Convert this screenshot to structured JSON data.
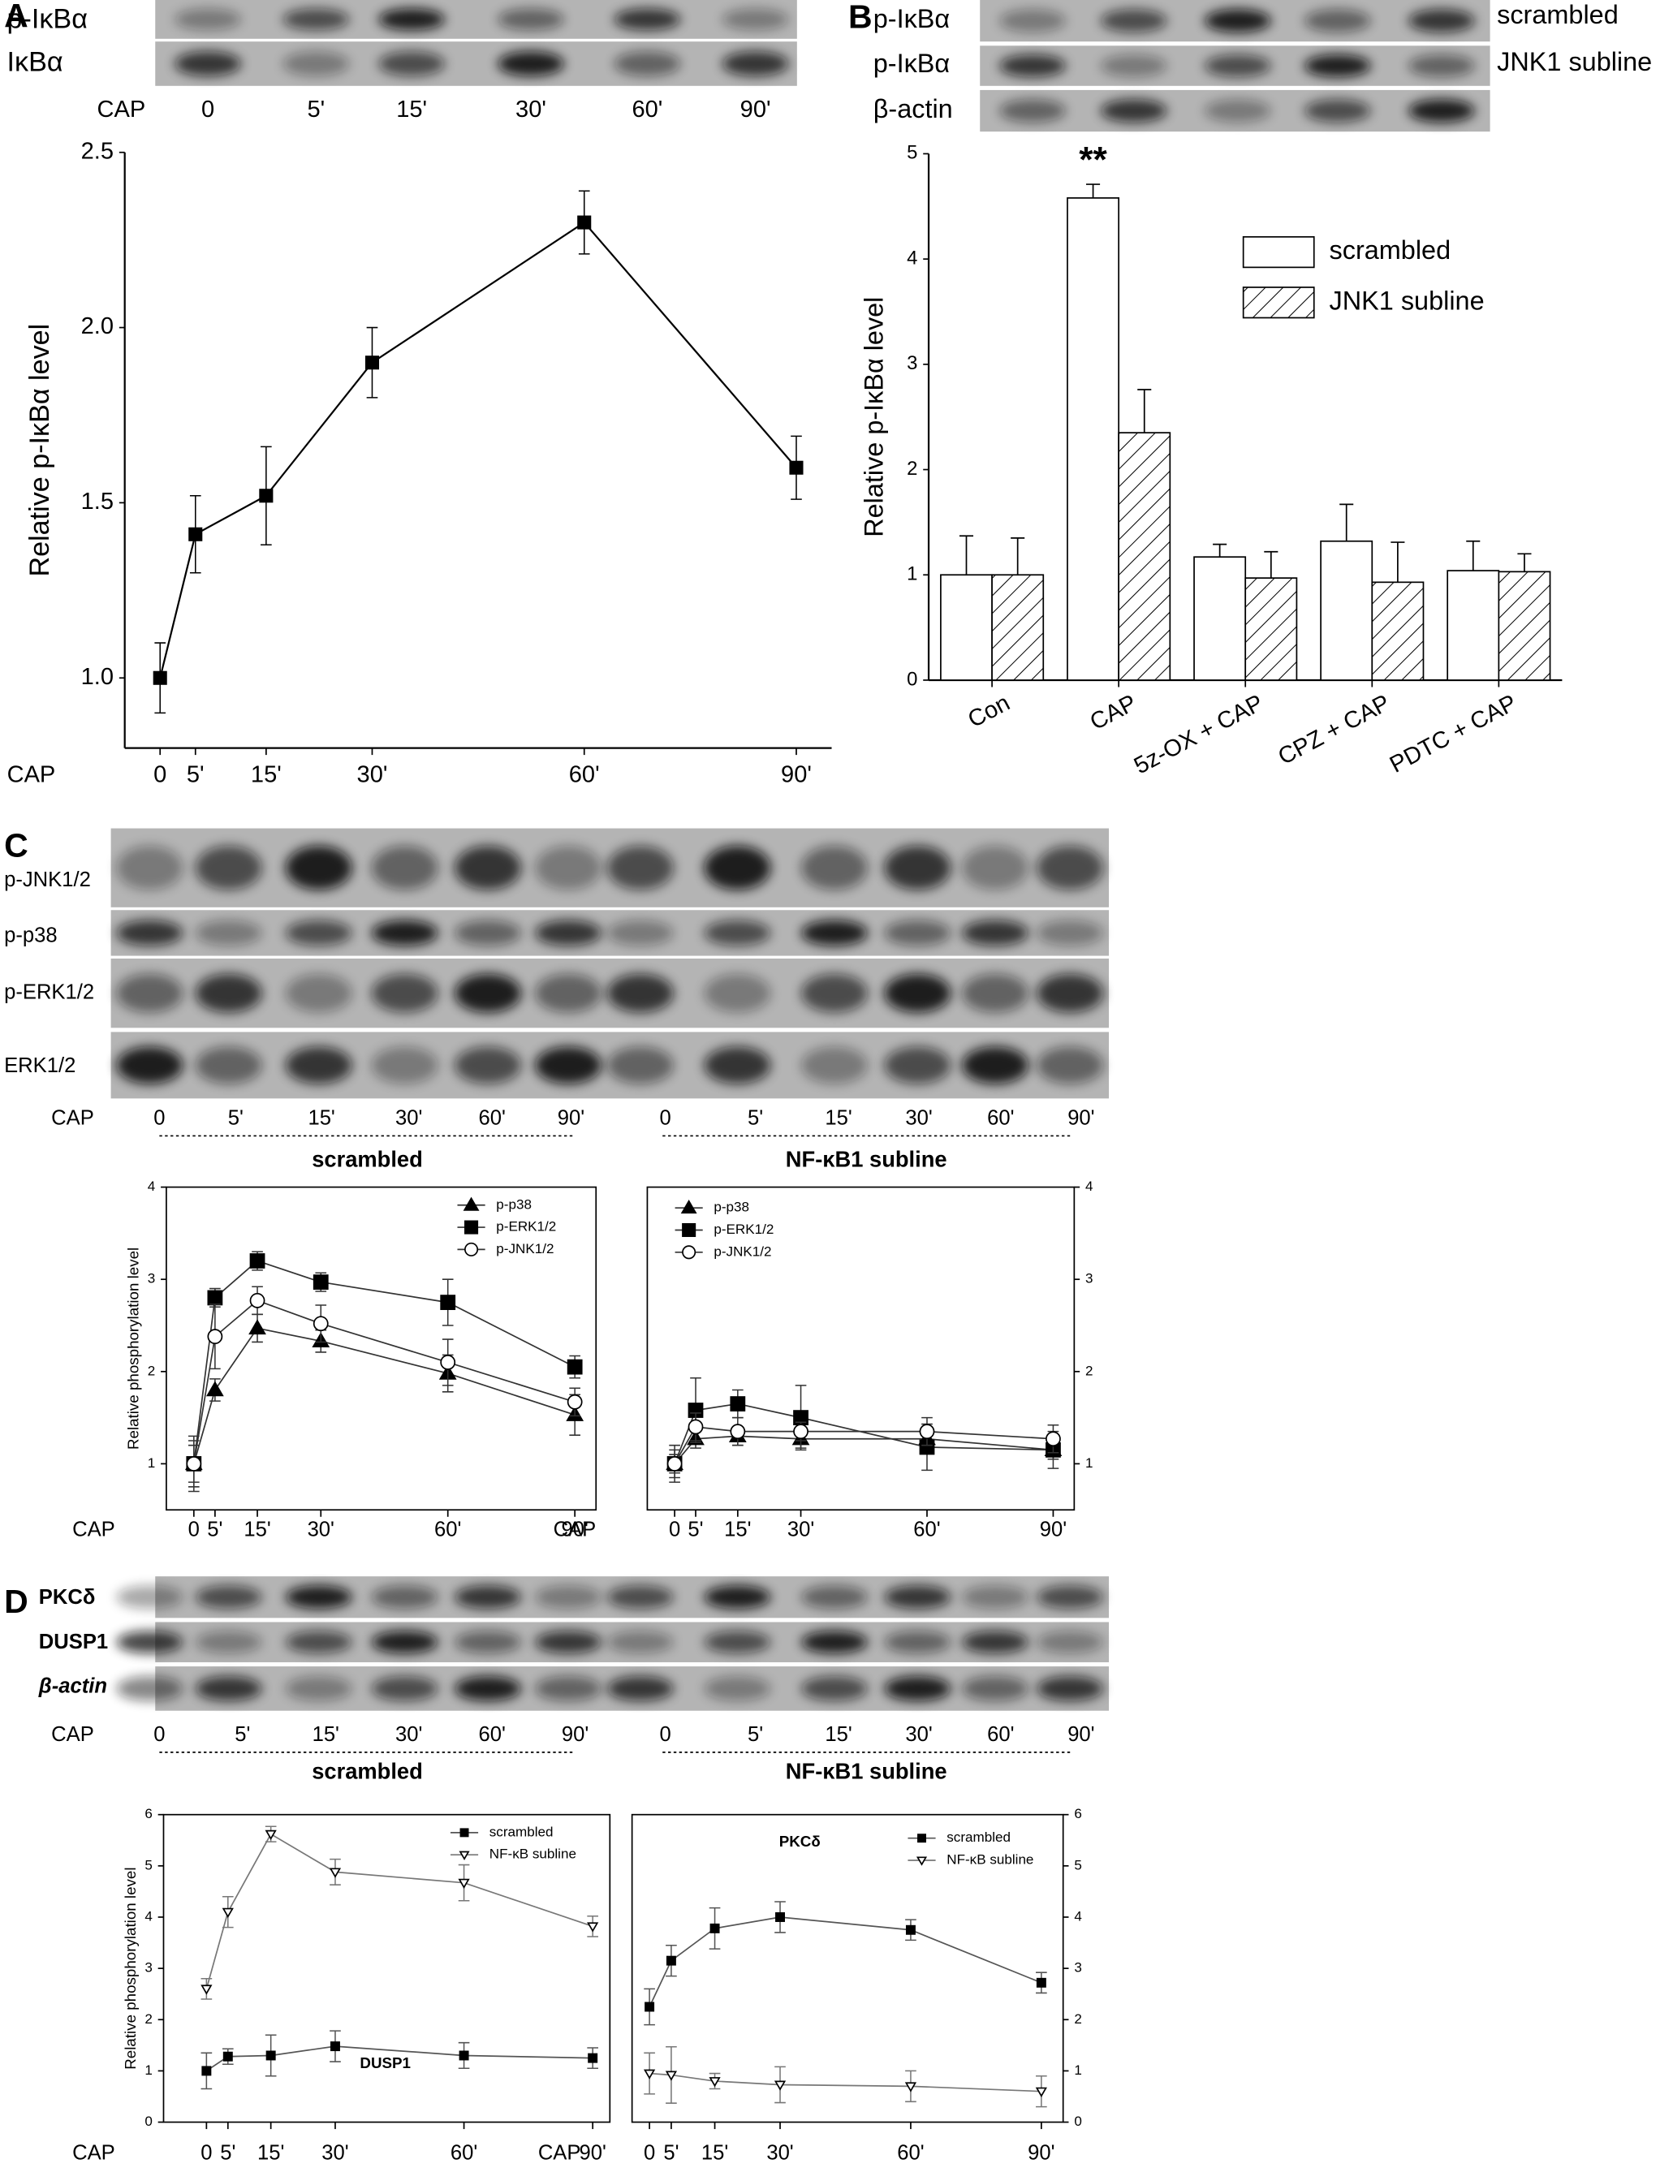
{
  "panel_labels": [
    "A",
    "B",
    "C",
    "D"
  ],
  "blots": [
    {
      "rows": [
        "p-IκBα",
        "IκBα"
      ],
      "x_label": "CAP",
      "groups": [
        {
          "lanes": [
            "0",
            "5'",
            "15'",
            "30'",
            "60'",
            "90'"
          ]
        }
      ]
    },
    {
      "rows": [
        "p-IκBα",
        "p-IκBα",
        "β-actin"
      ],
      "right_labels": [
        "scrambled",
        "JNK1 subline"
      ]
    },
    {
      "rows": [
        "p-JNK1/2",
        "p-p38",
        "p-ERK1/2",
        "ERK1/2"
      ],
      "x_label": "CAP",
      "groups": [
        {
          "name": "scrambled",
          "lanes": [
            "0",
            "5'",
            "15'",
            "30'",
            "60'",
            "90'"
          ]
        },
        {
          "name": "NF-κB1 subline",
          "lanes": [
            "0",
            "5'",
            "15'",
            "30'",
            "60'",
            "90'"
          ]
        }
      ]
    },
    {
      "rows": [
        "PKCδ",
        "DUSP1",
        "β-actin"
      ],
      "x_label": "CAP",
      "groups": [
        {
          "name": "scrambled",
          "lanes": [
            "0",
            "5'",
            "15'",
            "30'",
            "60'",
            "90'"
          ]
        },
        {
          "name": "NF-κB1 subline",
          "lanes": [
            "0",
            "5'",
            "15'",
            "30'",
            "60'",
            "90'"
          ]
        }
      ]
    }
  ],
  "chart_data": [
    {
      "type": "line",
      "y_label": "Relative p-IκBα level",
      "x_label": "CAP",
      "frame": false,
      "y_axis": "left",
      "x": [
        0,
        5,
        15,
        30,
        60,
        90
      ],
      "xlim": [
        -5,
        95
      ],
      "xticks": [
        0,
        {
          "value": 5,
          "label": "5'"
        },
        {
          "value": 15,
          "label": "15'"
        },
        {
          "value": 30,
          "label": "30'"
        },
        {
          "value": 60,
          "label": "60'"
        },
        {
          "value": 90,
          "label": "90'"
        }
      ],
      "ylim": [
        0.8,
        2.5
      ],
      "yticks": [
        {
          "value": 1,
          "label": "1.0"
        },
        1.5,
        {
          "value": 2,
          "label": "2.0"
        },
        2.5
      ],
      "series": [
        {
          "color": "#000000",
          "marker": "square",
          "marker_fill": "#000000",
          "values": [
            1.0,
            1.41,
            1.52,
            1.9,
            2.3,
            1.6
          ],
          "errors": [
            0.1,
            0.11,
            0.14,
            0.1,
            0.09,
            0.09
          ]
        }
      ]
    },
    {
      "type": "bar",
      "y_label": "Relative p-IκBα level",
      "annotation": "**",
      "legend": "upper right",
      "categories": [
        "Con",
        "CAP",
        "5z-OX + CAP",
        "CPZ + CAP",
        "PDTC + CAP"
      ],
      "ylim": [
        0,
        5
      ],
      "yticks": [
        0,
        1,
        2,
        3,
        4,
        5
      ],
      "series": [
        {
          "name": "scrambled",
          "color": "#ffffff",
          "pattern": "none",
          "values": [
            1.0,
            4.58,
            1.17,
            1.32,
            1.04
          ],
          "errors": [
            0.37,
            0.13,
            0.12,
            0.35,
            0.28
          ]
        },
        {
          "name": "JNK1 subline",
          "color": "#ffffff",
          "pattern": "hatch",
          "values": [
            1.0,
            2.35,
            0.97,
            0.93,
            1.03
          ],
          "errors": [
            0.35,
            0.41,
            0.25,
            0.38,
            0.17
          ]
        }
      ]
    },
    {
      "type": "line",
      "y_label": "Relative phosphorylation level",
      "x_label": "CAP",
      "frame": true,
      "y_axis": "left",
      "legend": "upper right",
      "x": [
        0,
        5,
        15,
        30,
        60,
        90
      ],
      "xlim": [
        -6.5,
        95
      ],
      "xticks": [
        0,
        {
          "value": 5,
          "label": "5'"
        },
        {
          "value": 15,
          "label": "15'"
        },
        {
          "value": 30,
          "label": "30'"
        },
        {
          "value": 60,
          "label": "60'"
        },
        {
          "value": 90,
          "label": "90'"
        }
      ],
      "ylim": [
        0.5,
        4
      ],
      "yticks": [
        1,
        2,
        3,
        4
      ],
      "series": [
        {
          "name": "p-p38",
          "color": "#333333",
          "marker": "triangle",
          "marker_fill": "#000000",
          "values": [
            1,
            1.8,
            2.47,
            2.33,
            1.98,
            1.53
          ],
          "errors": [
            0.2,
            0.12,
            0.15,
            0.12,
            0.2,
            0.22
          ]
        },
        {
          "name": "p-ERK1/2",
          "color": "#333333",
          "marker": "square",
          "marker_fill": "#000000",
          "values": [
            1,
            2.8,
            3.2,
            2.97,
            2.75,
            2.05
          ],
          "errors": [
            0.3,
            0.1,
            0.1,
            0.1,
            0.25,
            0.12
          ]
        },
        {
          "name": "p-JNK1/2",
          "color": "#333333",
          "marker": "circle",
          "marker_fill": "#ffffff",
          "values": [
            1,
            2.38,
            2.77,
            2.52,
            2.1,
            1.67
          ],
          "errors": [
            0.25,
            0.35,
            0.15,
            0.2,
            0.25,
            0.15
          ]
        }
      ]
    },
    {
      "type": "line",
      "x_label": "CAP",
      "frame": true,
      "y_axis": "right",
      "legend": "upper left",
      "x": [
        0,
        5,
        15,
        30,
        60,
        90
      ],
      "xlim": [
        -6.5,
        95
      ],
      "xticks": [
        0,
        {
          "value": 5,
          "label": "5'"
        },
        {
          "value": 15,
          "label": "15'"
        },
        {
          "value": 30,
          "label": "30'"
        },
        {
          "value": 60,
          "label": "60'"
        },
        {
          "value": 90,
          "label": "90'"
        }
      ],
      "ylim": [
        0.5,
        4
      ],
      "yticks": [
        1,
        2,
        3,
        4
      ],
      "series": [
        {
          "name": "p-p38",
          "color": "#333333",
          "marker": "triangle",
          "marker_fill": "#000000",
          "values": [
            1,
            1.27,
            1.3,
            1.27,
            1.27,
            1.15
          ],
          "errors": [
            0.1,
            0.1,
            0.1,
            0.1,
            0.1,
            0.1
          ]
        },
        {
          "name": "p-ERK1/2",
          "color": "#333333",
          "marker": "square",
          "marker_fill": "#000000",
          "values": [
            1,
            1.58,
            1.65,
            1.5,
            1.18,
            1.15
          ],
          "errors": [
            0.15,
            0.35,
            0.15,
            0.35,
            0.25,
            0.2
          ]
        },
        {
          "name": "p-JNK1/2",
          "color": "#333333",
          "marker": "circle",
          "marker_fill": "#ffffff",
          "values": [
            1,
            1.4,
            1.35,
            1.35,
            1.35,
            1.27
          ],
          "errors": [
            0.2,
            0.15,
            0.15,
            0.1,
            0.15,
            0.15
          ]
        }
      ]
    },
    {
      "type": "line",
      "y_label": "Relative phosphorylation level",
      "x_label": "CAP",
      "frame": true,
      "y_axis": "left",
      "legend": "upper right",
      "annotation": "DUSP1",
      "x": [
        0,
        5,
        15,
        30,
        60,
        90
      ],
      "xlim": [
        -10,
        94
      ],
      "xticks": [
        0,
        {
          "value": 5,
          "label": "5'"
        },
        {
          "value": 15,
          "label": "15'"
        },
        {
          "value": 30,
          "label": "30'"
        },
        {
          "value": 60,
          "label": "60'"
        },
        {
          "value": 90,
          "label": "90'"
        }
      ],
      "ylim": [
        0,
        6
      ],
      "yticks": [
        0,
        1,
        2,
        3,
        4,
        5,
        6
      ],
      "series": [
        {
          "name": "scrambled",
          "color": "#555555",
          "marker": "square",
          "marker_fill": "#000000",
          "values": [
            1,
            1.28,
            1.3,
            1.48,
            1.3,
            1.25
          ],
          "errors": [
            0.35,
            0.15,
            0.4,
            0.3,
            0.25,
            0.2
          ]
        },
        {
          "name": "NF-κB subline",
          "color": "#777777",
          "marker": "triangle-down",
          "marker_fill": "#ffffff",
          "values": [
            2.6,
            4.1,
            5.62,
            4.88,
            4.67,
            3.82
          ],
          "errors": [
            0.2,
            0.3,
            0.15,
            0.25,
            0.35,
            0.2
          ]
        }
      ]
    },
    {
      "type": "line",
      "x_label": "CAP",
      "frame": true,
      "y_axis": "right",
      "legend": "upper right",
      "annotation": "PKCδ",
      "x": [
        0,
        5,
        15,
        30,
        60,
        90
      ],
      "xlim": [
        -4,
        95
      ],
      "xticks": [
        0,
        {
          "value": 5,
          "label": "5'"
        },
        {
          "value": 15,
          "label": "15'"
        },
        {
          "value": 30,
          "label": "30'"
        },
        {
          "value": 60,
          "label": "60'"
        },
        {
          "value": 90,
          "label": "90'"
        }
      ],
      "ylim": [
        0,
        6
      ],
      "yticks": [
        0,
        1,
        2,
        3,
        4,
        5,
        6
      ],
      "series": [
        {
          "name": "scrambled",
          "color": "#555555",
          "marker": "square",
          "marker_fill": "#000000",
          "values": [
            2.25,
            3.15,
            3.78,
            4.0,
            3.75,
            2.72
          ],
          "errors": [
            0.35,
            0.3,
            0.4,
            0.3,
            0.2,
            0.2
          ]
        },
        {
          "name": "NF-κB subline",
          "color": "#777777",
          "marker": "triangle-down",
          "marker_fill": "#ffffff",
          "values": [
            0.95,
            0.92,
            0.8,
            0.73,
            0.7,
            0.6
          ],
          "errors": [
            0.4,
            0.55,
            0.15,
            0.35,
            0.3,
            0.3
          ]
        }
      ]
    }
  ]
}
